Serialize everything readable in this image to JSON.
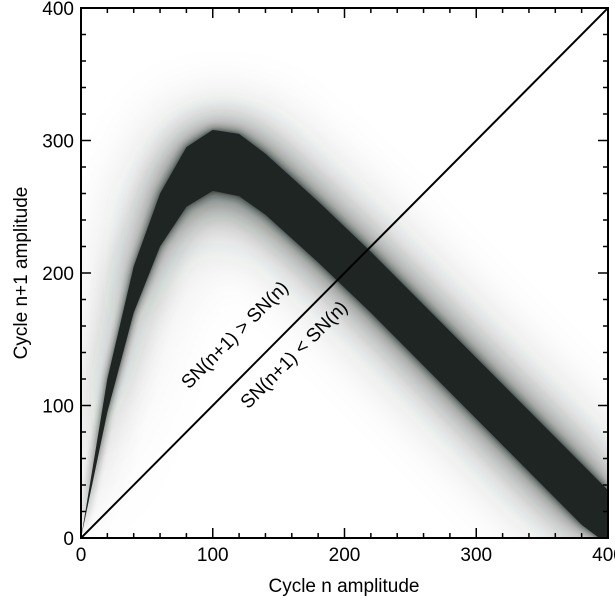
{
  "chart_data": {
    "type": "heatmap",
    "title": "",
    "xlabel": "Cycle n amplitude",
    "ylabel": "Cycle n+1 amplitude",
    "xlim": [
      0,
      400
    ],
    "ylim": [
      0,
      400
    ],
    "x_ticks": [
      "0",
      "100",
      "200",
      "300",
      "400"
    ],
    "y_ticks": [
      "0",
      "100",
      "200",
      "300",
      "400"
    ],
    "x_tick_values": [
      0,
      100,
      200,
      300,
      400
    ],
    "y_tick_values": [
      0,
      100,
      200,
      300,
      400
    ],
    "grid": false,
    "colormap": "white-to-black (density)",
    "band_color": "#1f2523",
    "ridge": {
      "x": [
        0,
        20,
        40,
        60,
        80,
        100,
        120,
        140,
        160,
        180,
        200,
        220,
        240,
        260,
        280,
        300,
        320,
        340,
        360,
        380,
        400
      ],
      "y_lower": [
        0,
        95,
        170,
        220,
        250,
        262,
        258,
        244,
        226,
        208,
        189,
        170,
        150,
        130,
        110,
        90,
        70,
        50,
        30,
        10,
        -5
      ],
      "y_upper": [
        0,
        120,
        205,
        260,
        295,
        308,
        305,
        290,
        272,
        254,
        235,
        216,
        196,
        176,
        156,
        136,
        116,
        96,
        76,
        56,
        36
      ]
    },
    "diagonal": {
      "x": [
        0,
        400
      ],
      "y": [
        0,
        400
      ]
    },
    "annotations": [
      {
        "text": "SN(n+1) > SN(n)",
        "x": 120,
        "y": 150
      },
      {
        "text": "SN(n+1) < SN(n)",
        "x": 165,
        "y": 135
      }
    ]
  }
}
